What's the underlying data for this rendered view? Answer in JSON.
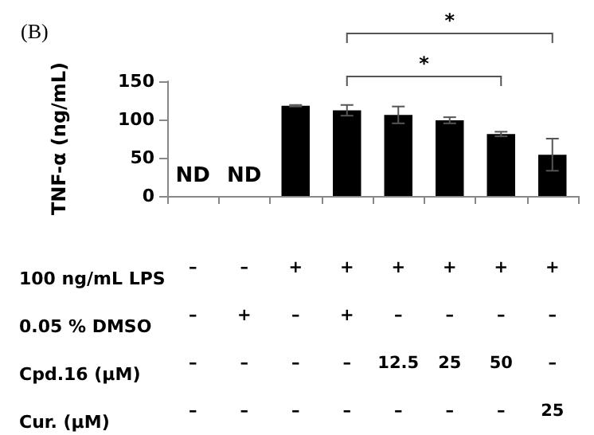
{
  "chart_data": {
    "type": "bar",
    "title": "(B)",
    "ylabel": "TNF-α (ng/mL)",
    "categories": [
      "–\n–\n–\n–",
      "–\n+\n–\n–",
      "+\n–\n–\n–",
      "+\n+\n–\n–",
      "+\n–\n12.5\n–",
      "+\n–\n25\n–",
      "+\n–\n50\n–",
      "+\n–\n–\n25"
    ],
    "values": [
      null,
      null,
      118,
      112,
      106,
      99,
      81,
      54
    ],
    "errors": [
      null,
      null,
      1,
      7,
      11,
      4,
      3,
      21
    ],
    "value_labels": [
      "ND",
      "ND",
      null,
      null,
      null,
      null,
      null,
      null
    ],
    "color": "#000000",
    "ylim": [
      0,
      150
    ],
    "yticks": [
      0,
      50,
      100,
      150
    ],
    "grid": false,
    "annotations": [
      "100 ng/mL LPS",
      "0.05 % DMSO",
      "Cpd.16 (μM)",
      "Cur. (μM)",
      "*",
      "*"
    ]
  }
}
